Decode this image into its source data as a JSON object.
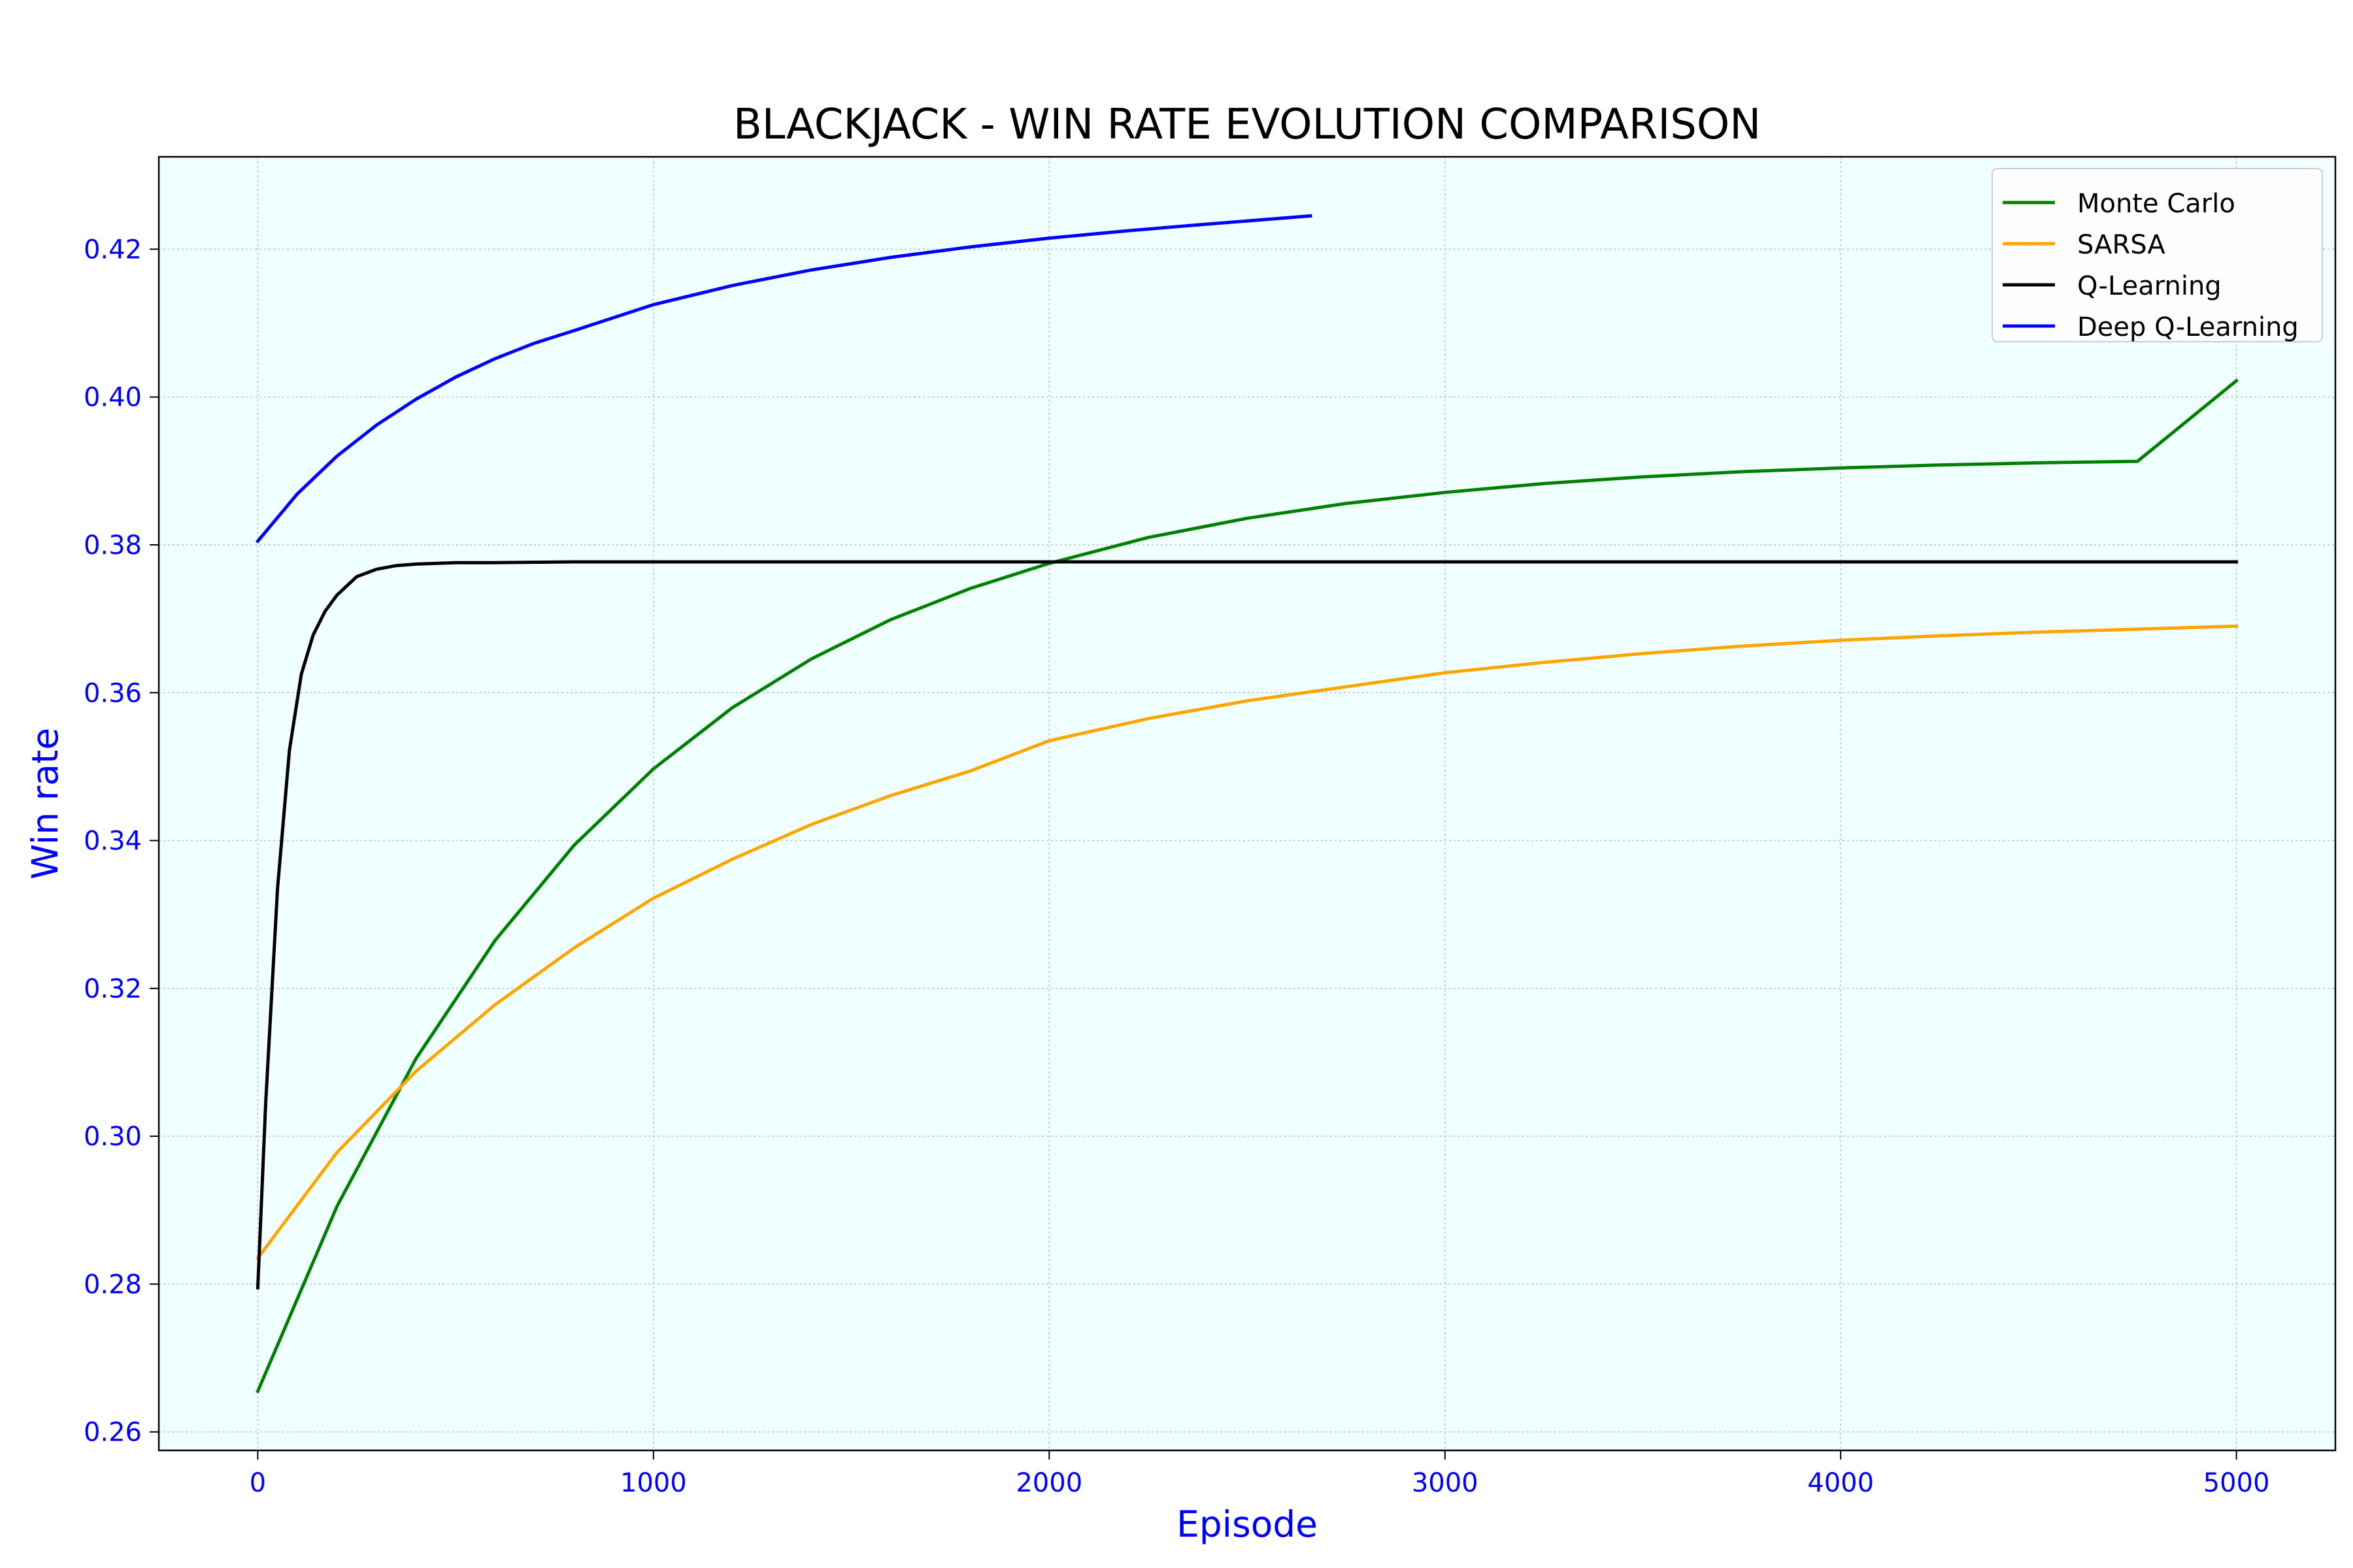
{
  "chart_data": {
    "type": "line",
    "title": "BLACKJACK - WIN RATE EVOLUTION COMPARISON",
    "xlabel": "Episode",
    "ylabel": "Win rate",
    "xlim": [
      -250,
      5250
    ],
    "ylim": [
      0.2575,
      0.4325
    ],
    "xticks": [
      0,
      1000,
      2000,
      3000,
      4000,
      5000
    ],
    "yticks": [
      0.26,
      0.28,
      0.3,
      0.32,
      0.34,
      0.36,
      0.38,
      0.4,
      0.42
    ],
    "xtick_labels": [
      "0",
      "1000",
      "2000",
      "3000",
      "4000",
      "5000"
    ],
    "ytick_labels": [
      "0.26",
      "0.28",
      "0.30",
      "0.32",
      "0.34",
      "0.36",
      "0.38",
      "0.40",
      "0.42"
    ],
    "grid": true,
    "legend_position": "top-right",
    "plot_background": "#f0ffff",
    "series": [
      {
        "name": "Monte Carlo",
        "color": "#008000",
        "x": [
          0,
          200,
          400,
          600,
          800,
          1000,
          1200,
          1400,
          1600,
          1800,
          2000,
          2250,
          2500,
          2750,
          3000,
          3250,
          3500,
          3750,
          4000,
          4250,
          4500,
          4750,
          5000
        ],
        "y": [
          0.2655,
          0.2905,
          0.3105,
          0.3265,
          0.3394,
          0.3497,
          0.358,
          0.3646,
          0.3699,
          0.3741,
          0.3775,
          0.381,
          0.3836,
          0.3856,
          0.3871,
          0.3883,
          0.3892,
          0.3899,
          0.3904,
          0.3908,
          0.3911,
          0.3913,
          0.4022
        ]
      },
      {
        "name": "SARSA",
        "color": "#ffa500",
        "x": [
          0,
          200,
          400,
          600,
          800,
          1000,
          1200,
          1400,
          1600,
          1800,
          2000,
          2250,
          2500,
          2750,
          3000,
          3250,
          3500,
          3750,
          4000,
          4250,
          4500,
          4750,
          5000
        ],
        "y": [
          0.2835,
          0.2978,
          0.3088,
          0.3178,
          0.3255,
          0.3322,
          0.3375,
          0.3422,
          0.3461,
          0.3494,
          0.3535,
          0.3565,
          0.3589,
          0.3608,
          0.3627,
          0.3641,
          0.3653,
          0.3663,
          0.3671,
          0.3677,
          0.3682,
          0.3686,
          0.369
        ]
      },
      {
        "name": "Q-Learning",
        "color": "#000000",
        "x": [
          0,
          20,
          50,
          80,
          110,
          140,
          170,
          200,
          250,
          300,
          350,
          400,
          500,
          600,
          800,
          1000,
          1500,
          2000,
          3000,
          4000,
          5000
        ],
        "y": [
          0.2795,
          0.3045,
          0.3335,
          0.3522,
          0.3625,
          0.3678,
          0.371,
          0.3732,
          0.3757,
          0.3767,
          0.3772,
          0.3774,
          0.3776,
          0.3776,
          0.3777,
          0.3777,
          0.3777,
          0.3777,
          0.3777,
          0.3777,
          0.3777
        ]
      },
      {
        "name": "Deep Q-Learning",
        "color": "#0000ff",
        "x": [
          0,
          100,
          200,
          300,
          400,
          500,
          600,
          700,
          800,
          1000,
          1200,
          1400,
          1600,
          1800,
          2000,
          2200,
          2400,
          2660
        ],
        "y": [
          0.3805,
          0.3869,
          0.392,
          0.3962,
          0.3997,
          0.4027,
          0.4052,
          0.4073,
          0.409,
          0.4125,
          0.4151,
          0.4172,
          0.4189,
          0.4203,
          0.4215,
          0.4225,
          0.4234,
          0.4245
        ]
      }
    ]
  }
}
